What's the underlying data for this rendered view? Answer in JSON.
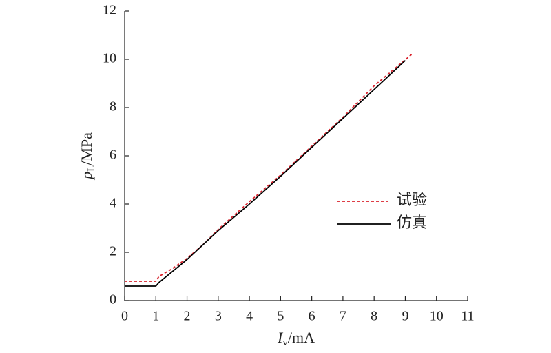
{
  "chart_data": {
    "type": "line",
    "x_label": {
      "symbol": "I",
      "subscript": "v",
      "unit": "/mA"
    },
    "y_label": {
      "symbol": "p",
      "subscript": "L",
      "unit": "/MPa"
    },
    "xlim": [
      0,
      11
    ],
    "xticks": [
      0,
      1,
      2,
      3,
      4,
      5,
      6,
      7,
      8,
      9,
      10,
      11
    ],
    "ylim": [
      0,
      12
    ],
    "yticks": [
      0,
      2,
      4,
      6,
      8,
      10,
      12
    ],
    "legend": "right",
    "series": [
      {
        "name": "试验",
        "color": "#d9232d",
        "dash": true,
        "x": [
          0,
          1,
          1.1,
          1.5,
          2,
          2.5,
          3,
          4,
          5,
          6,
          7,
          8,
          9.2
        ],
        "values": [
          0.8,
          0.8,
          1.0,
          1.3,
          1.75,
          2.3,
          2.95,
          4.1,
          5.2,
          6.4,
          7.6,
          8.9,
          10.2
        ]
      },
      {
        "name": "仿真",
        "color": "#000000",
        "dash": false,
        "x": [
          0,
          1,
          1.1,
          2,
          3,
          4,
          5,
          6,
          7,
          8,
          9
        ],
        "values": [
          0.6,
          0.6,
          0.75,
          1.7,
          2.9,
          4.0,
          5.15,
          6.35,
          7.55,
          8.75,
          9.95
        ]
      }
    ]
  }
}
